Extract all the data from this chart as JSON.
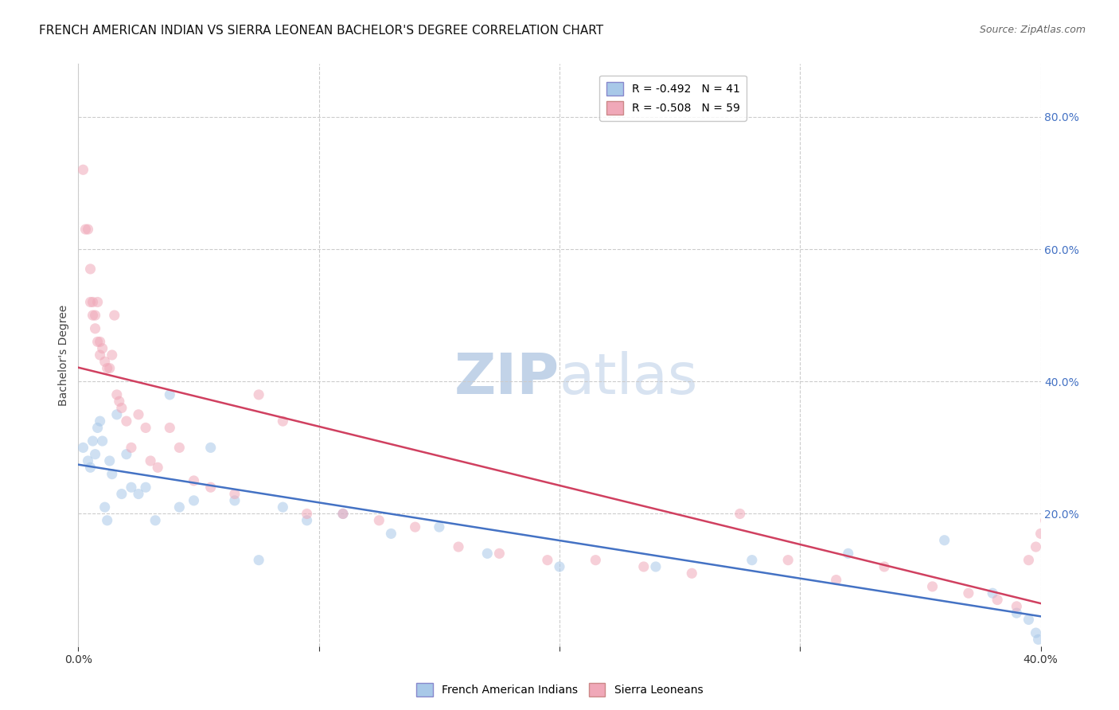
{
  "title": "FRENCH AMERICAN INDIAN VS SIERRA LEONEAN BACHELOR'S DEGREE CORRELATION CHART",
  "source": "Source: ZipAtlas.com",
  "ylabel": "Bachelor's Degree",
  "watermark_zip": "ZIP",
  "watermark_atlas": "atlas",
  "xlim": [
    0.0,
    0.4
  ],
  "ylim": [
    0.0,
    0.88
  ],
  "xticks": [
    0.0,
    0.1,
    0.2,
    0.3,
    0.4
  ],
  "yticks": [
    0.2,
    0.4,
    0.6,
    0.8
  ],
  "blue_R": -0.492,
  "blue_N": 41,
  "pink_R": -0.508,
  "pink_N": 59,
  "blue_color": "#a8c8e8",
  "pink_color": "#f0a8b8",
  "blue_line_color": "#4472c4",
  "pink_line_color": "#d04060",
  "grid_color": "#cccccc",
  "background_color": "#ffffff",
  "blue_x": [
    0.002,
    0.004,
    0.005,
    0.006,
    0.007,
    0.008,
    0.009,
    0.01,
    0.011,
    0.012,
    0.013,
    0.014,
    0.016,
    0.018,
    0.02,
    0.022,
    0.025,
    0.028,
    0.032,
    0.038,
    0.042,
    0.048,
    0.055,
    0.065,
    0.075,
    0.085,
    0.095,
    0.11,
    0.13,
    0.15,
    0.17,
    0.2,
    0.24,
    0.28,
    0.32,
    0.36,
    0.38,
    0.39,
    0.395,
    0.398,
    0.399
  ],
  "blue_y": [
    0.3,
    0.28,
    0.27,
    0.31,
    0.29,
    0.33,
    0.34,
    0.31,
    0.21,
    0.19,
    0.28,
    0.26,
    0.35,
    0.23,
    0.29,
    0.24,
    0.23,
    0.24,
    0.19,
    0.38,
    0.21,
    0.22,
    0.3,
    0.22,
    0.13,
    0.21,
    0.19,
    0.2,
    0.17,
    0.18,
    0.14,
    0.12,
    0.12,
    0.13,
    0.14,
    0.16,
    0.08,
    0.05,
    0.04,
    0.02,
    0.01
  ],
  "pink_x": [
    0.002,
    0.003,
    0.004,
    0.005,
    0.005,
    0.006,
    0.006,
    0.007,
    0.007,
    0.008,
    0.008,
    0.009,
    0.009,
    0.01,
    0.011,
    0.012,
    0.013,
    0.014,
    0.015,
    0.016,
    0.017,
    0.018,
    0.02,
    0.022,
    0.025,
    0.028,
    0.03,
    0.033,
    0.038,
    0.042,
    0.048,
    0.055,
    0.065,
    0.075,
    0.085,
    0.095,
    0.11,
    0.125,
    0.14,
    0.158,
    0.175,
    0.195,
    0.215,
    0.235,
    0.255,
    0.275,
    0.295,
    0.315,
    0.335,
    0.355,
    0.37,
    0.382,
    0.39,
    0.395,
    0.398,
    0.4,
    0.402,
    0.405,
    0.408
  ],
  "pink_y": [
    0.72,
    0.63,
    0.63,
    0.57,
    0.52,
    0.5,
    0.52,
    0.5,
    0.48,
    0.46,
    0.52,
    0.44,
    0.46,
    0.45,
    0.43,
    0.42,
    0.42,
    0.44,
    0.5,
    0.38,
    0.37,
    0.36,
    0.34,
    0.3,
    0.35,
    0.33,
    0.28,
    0.27,
    0.33,
    0.3,
    0.25,
    0.24,
    0.23,
    0.38,
    0.34,
    0.2,
    0.2,
    0.19,
    0.18,
    0.15,
    0.14,
    0.13,
    0.13,
    0.12,
    0.11,
    0.2,
    0.13,
    0.1,
    0.12,
    0.09,
    0.08,
    0.07,
    0.06,
    0.13,
    0.15,
    0.17,
    0.19,
    0.21,
    0.16
  ],
  "title_fontsize": 11,
  "source_fontsize": 9,
  "axis_label_fontsize": 10,
  "tick_fontsize": 10,
  "legend_fontsize": 10,
  "watermark_fontsize": 52,
  "marker_size": 90,
  "marker_alpha": 0.55,
  "line_width": 1.8,
  "right_ytick_color": "#4472c4",
  "ytick_label_color": "#4472c4"
}
